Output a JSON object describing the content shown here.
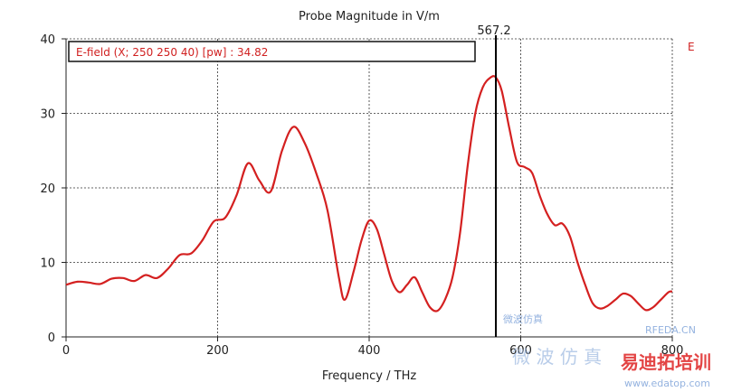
{
  "chart_data": {
    "type": "line",
    "title": "Probe Magnitude in V/m",
    "xlabel": "Frequency / THz",
    "ylabel": "",
    "xlim": [
      0,
      800
    ],
    "ylim": [
      0,
      40
    ],
    "x_ticks": [
      "0",
      "200",
      "400",
      "600",
      "800"
    ],
    "y_ticks": [
      "0",
      "10",
      "20",
      "30",
      "40"
    ],
    "grid": "dotted",
    "legend_right": "E",
    "readout": "E-field (X; 250 250 40) [pw] : 34.82",
    "marker": {
      "x": 567.2,
      "label": "567.2"
    },
    "series": [
      {
        "color": "#d42020",
        "x": [
          0,
          15,
          30,
          45,
          60,
          75,
          90,
          105,
          120,
          135,
          150,
          165,
          180,
          195,
          210,
          225,
          240,
          255,
          270,
          285,
          300,
          315,
          330,
          345,
          360,
          368,
          380,
          390,
          400,
          410,
          420,
          430,
          440,
          450,
          460,
          470,
          480,
          490,
          500,
          510,
          520,
          530,
          540,
          550,
          560,
          567.2,
          575,
          585,
          595,
          605,
          615,
          625,
          635,
          645,
          655,
          665,
          675,
          685,
          695,
          705,
          715,
          725,
          735,
          745,
          755,
          765,
          775,
          785,
          795,
          800
        ],
        "y": [
          7,
          7.4,
          7.3,
          7.1,
          7.8,
          7.9,
          7.5,
          8.3,
          7.9,
          9.2,
          11,
          11.2,
          13,
          15.5,
          16,
          19,
          23.3,
          21,
          19.5,
          25,
          28.2,
          26,
          22,
          17,
          8,
          5,
          9,
          13,
          15.6,
          14.5,
          11,
          7.5,
          6,
          7,
          8,
          6,
          4,
          3.5,
          5,
          8,
          14,
          23,
          30,
          33.5,
          34.8,
          34.82,
          33,
          28,
          23.5,
          22.8,
          22,
          19,
          16.5,
          15,
          15.2,
          13.5,
          10,
          7,
          4.5,
          3.8,
          4.2,
          5,
          5.8,
          5.5,
          4.5,
          3.6,
          4,
          5,
          6,
          6.1
        ]
      }
    ]
  },
  "watermark": {
    "small_text": "RFEDA.CN",
    "small_cn": "微波仿真",
    "brand": "易迪拓培训",
    "url": "www.edatop.com",
    "faint_text": "微 波 仿 真"
  }
}
